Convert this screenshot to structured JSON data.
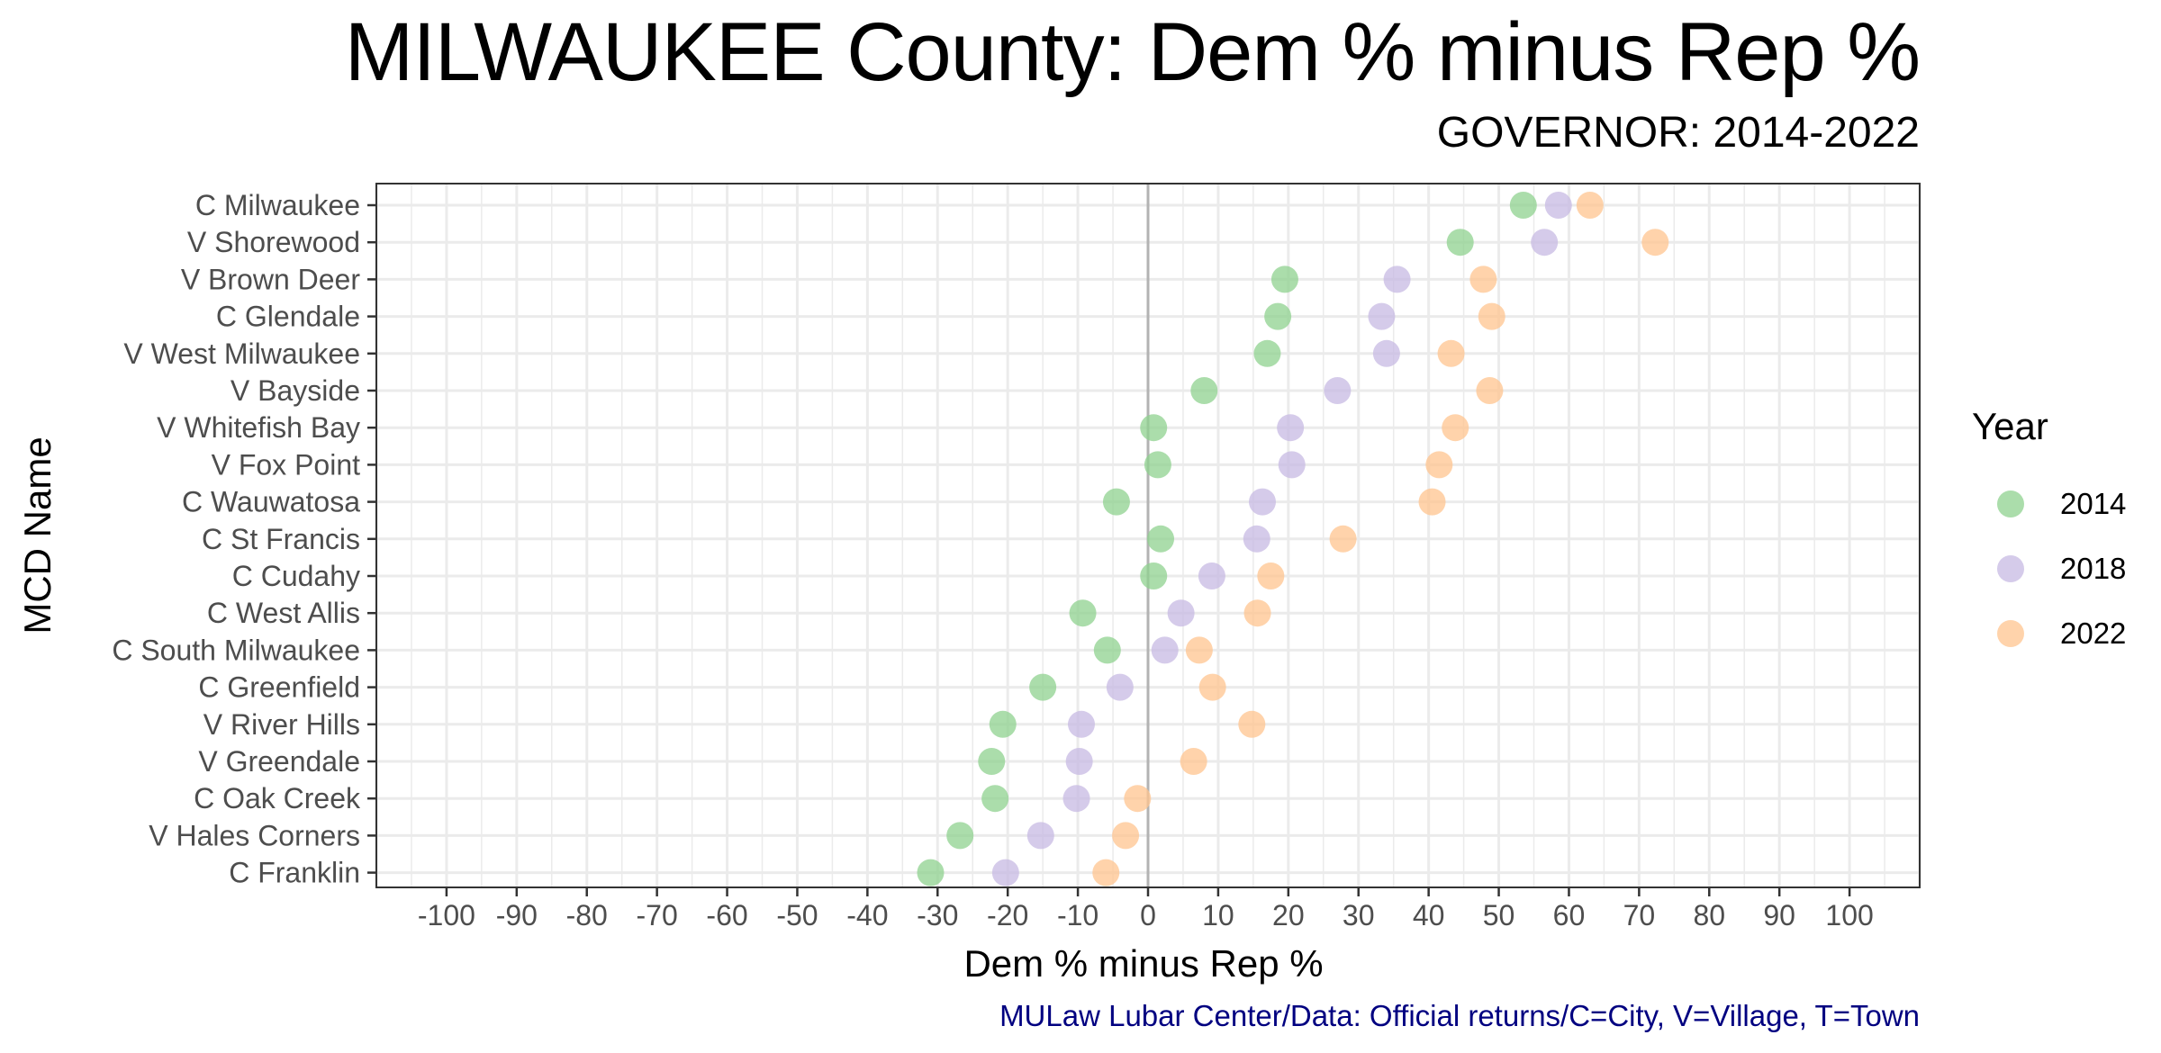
{
  "title": "MILWAUKEE County: Dem % minus Rep %",
  "subtitle": "GOVERNOR: 2014-2022",
  "caption": "MULaw Lubar Center/Data: Official returns/C=City, V=Village, T=Town",
  "legend": {
    "title": "Year",
    "items": [
      {
        "label": "2014",
        "color": "#8fd18f"
      },
      {
        "label": "2018",
        "color": "#c7b9e3"
      },
      {
        "label": "2022",
        "color": "#ffc48f"
      }
    ]
  },
  "chart_data": {
    "type": "scatter",
    "title": "MILWAUKEE County: Dem % minus Rep %",
    "subtitle": "GOVERNOR: 2014-2022",
    "xlabel": "Dem % minus Rep %",
    "ylabel": "MCD Name",
    "xlim": [
      -110,
      110
    ],
    "x_ticks": [
      -100,
      -90,
      -80,
      -70,
      -60,
      -50,
      -40,
      -30,
      -20,
      -10,
      0,
      10,
      20,
      30,
      40,
      50,
      60,
      70,
      80,
      90,
      100
    ],
    "grid": true,
    "legend_position": "right",
    "categories": [
      "C Milwaukee",
      "V Shorewood",
      "V Brown Deer",
      "C Glendale",
      "V West Milwaukee",
      "V Bayside",
      "V Whitefish Bay",
      "V Fox Point",
      "C Wauwatosa",
      "C St Francis",
      "C Cudahy",
      "C West Allis",
      "C South Milwaukee",
      "C Greenfield",
      "V River Hills",
      "V Greendale",
      "C Oak Creek",
      "V Hales Corners",
      "C Franklin"
    ],
    "series": [
      {
        "name": "2014",
        "color": "#8fd18f",
        "values": [
          53.5,
          44.5,
          19.5,
          18.5,
          17,
          8,
          0.8,
          1.4,
          -4.5,
          1.8,
          0.8,
          -9.3,
          -5.8,
          -15,
          -20.7,
          -22.3,
          -21.8,
          -26.8,
          -31
        ]
      },
      {
        "name": "2018",
        "color": "#c7b9e3",
        "values": [
          58.5,
          56.5,
          35.5,
          33.3,
          34,
          27,
          20.3,
          20.5,
          16.3,
          15.5,
          9.1,
          4.7,
          2.4,
          -4,
          -9.5,
          -9.8,
          -10.2,
          -15.3,
          -20.3
        ]
      },
      {
        "name": "2022",
        "color": "#ffc48f",
        "values": [
          63,
          72.3,
          47.8,
          49,
          43.2,
          48.7,
          43.8,
          41.5,
          40.5,
          27.8,
          17.5,
          15.6,
          7.3,
          9.2,
          14.8,
          6.5,
          -1.5,
          -3.2,
          -6
        ]
      }
    ]
  }
}
